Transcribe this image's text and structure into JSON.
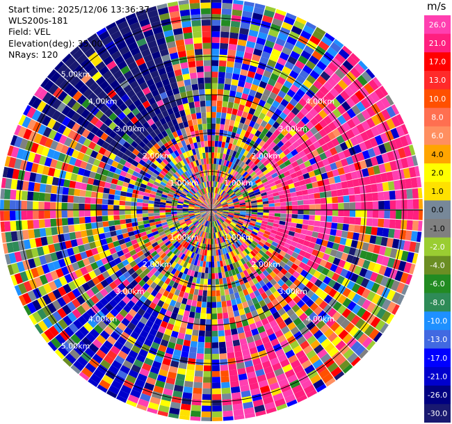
{
  "info": {
    "start_time": "Start time: 2025/12/06 13:36:37",
    "instrument": "WLS200s-181",
    "field": "Field: VEL",
    "elevation": "Elevation(deg): 35.00",
    "nrays": "NRays: 120"
  },
  "chart_data": {
    "type": "heatmap",
    "projection": "polar-ppi",
    "field": "VEL",
    "units": "m/s",
    "n_rays": 120,
    "elevation_deg": 35.0,
    "max_range_km": 5.5,
    "range_ring_labels": [
      "1.00km",
      "2.00km",
      "3.00km",
      "4.00km",
      "5.00km"
    ],
    "colorbar": {
      "title": "m/s",
      "ticks": [
        "26.0",
        "21.0",
        "17.0",
        "13.0",
        "10.0",
        "8.0",
        "6.0",
        "4.0",
        "2.0",
        "1.0",
        "0.0",
        "-1.0",
        "-2.0",
        "-4.0",
        "-6.0",
        "-8.0",
        "-10.0",
        "-13.0",
        "-17.0",
        "-21.0",
        "-26.0",
        "-30.0"
      ],
      "colors": [
        "#ff3fb0",
        "#ff1f7f",
        "#ff0000",
        "#ff2a2a",
        "#ff5000",
        "#ff6f50",
        "#ff8f60",
        "#ffa500",
        "#ffff00",
        "#ffe100",
        "#778899",
        "#808080",
        "#9acd32",
        "#6b8e23",
        "#228b22",
        "#2e8b57",
        "#1e90ff",
        "#4169e1",
        "#0000ff",
        "#0000cd",
        "#000080",
        "#191970"
      ]
    }
  }
}
